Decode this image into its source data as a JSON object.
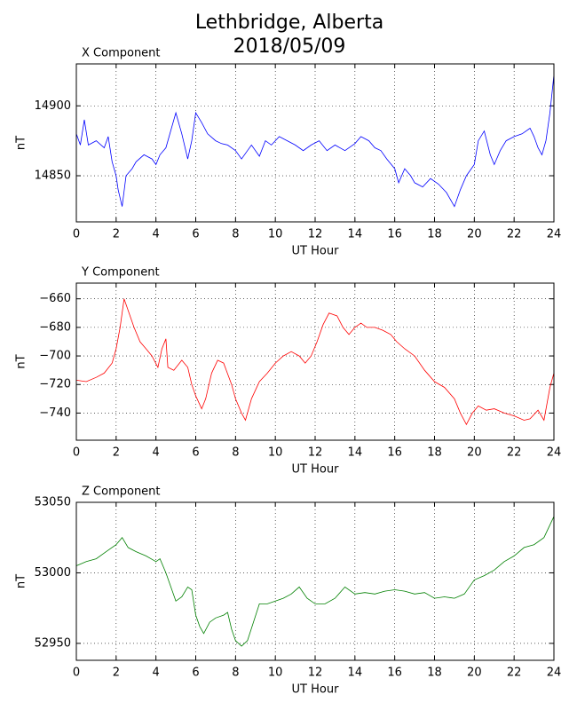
{
  "title": [
    "Lethbridge, Alberta",
    "2018/05/09"
  ],
  "chart_data": [
    {
      "type": "line",
      "title": "X Component",
      "xlabel": "UT Hour",
      "ylabel": "nT",
      "color": "#0000ff",
      "grid": true,
      "xlim": [
        0,
        24
      ],
      "xticks": [
        0,
        2,
        4,
        6,
        8,
        10,
        12,
        14,
        16,
        18,
        20,
        22,
        24
      ],
      "ylim": [
        14817,
        14930
      ],
      "yticks": [
        14850,
        14900
      ],
      "x": [
        0,
        0.2,
        0.4,
        0.6,
        1.0,
        1.4,
        1.6,
        1.8,
        2.0,
        2.1,
        2.3,
        2.5,
        2.8,
        3.0,
        3.4,
        3.8,
        4.0,
        4.2,
        4.5,
        4.8,
        5.0,
        5.3,
        5.6,
        5.8,
        6.0,
        6.3,
        6.6,
        7.0,
        7.3,
        7.6,
        8.0,
        8.3,
        8.6,
        8.8,
        9.2,
        9.5,
        9.8,
        10.2,
        10.6,
        11.0,
        11.4,
        11.8,
        12.2,
        12.6,
        13.0,
        13.5,
        14.0,
        14.3,
        14.7,
        15.0,
        15.3,
        15.6,
        16.0,
        16.2,
        16.5,
        16.8,
        17.0,
        17.4,
        17.8,
        18.2,
        18.6,
        19.0,
        19.3,
        19.6,
        20.0,
        20.2,
        20.5,
        20.8,
        21.0,
        21.3,
        21.6,
        22.0,
        22.4,
        22.8,
        23.0,
        23.2,
        23.4,
        23.6,
        23.8,
        24.0
      ],
      "values": [
        14880,
        14872,
        14890,
        14872,
        14875,
        14870,
        14878,
        14860,
        14850,
        14840,
        14828,
        14850,
        14855,
        14860,
        14865,
        14862,
        14858,
        14865,
        14870,
        14885,
        14895,
        14880,
        14862,
        14875,
        14895,
        14888,
        14880,
        14875,
        14873,
        14872,
        14868,
        14862,
        14868,
        14872,
        14864,
        14875,
        14872,
        14878,
        14875,
        14872,
        14868,
        14872,
        14875,
        14868,
        14872,
        14868,
        14873,
        14878,
        14875,
        14870,
        14868,
        14862,
        14855,
        14845,
        14855,
        14850,
        14845,
        14842,
        14848,
        14844,
        14838,
        14828,
        14840,
        14850,
        14858,
        14875,
        14882,
        14865,
        14858,
        14868,
        14875,
        14878,
        14880,
        14884,
        14878,
        14870,
        14865,
        14875,
        14895,
        14922
      ]
    },
    {
      "type": "line",
      "title": "Y Component",
      "xlabel": "UT Hour",
      "ylabel": "nT",
      "color": "#ff0000",
      "grid": true,
      "xlim": [
        0,
        24
      ],
      "xticks": [
        0,
        2,
        4,
        6,
        8,
        10,
        12,
        14,
        16,
        18,
        20,
        22,
        24
      ],
      "ylim": [
        -759,
        -649
      ],
      "yticks": [
        {
          "value": -740,
          "label": "−740"
        },
        {
          "value": -720,
          "label": "−720"
        },
        {
          "value": -700,
          "label": "−700"
        },
        {
          "value": -680,
          "label": "−680"
        },
        {
          "value": -660,
          "label": "−660"
        }
      ],
      "x": [
        0,
        0.5,
        1.0,
        1.4,
        1.8,
        2.0,
        2.2,
        2.4,
        2.6,
        2.9,
        3.2,
        3.5,
        3.8,
        4.1,
        4.3,
        4.5,
        4.6,
        4.9,
        5.3,
        5.6,
        5.8,
        6.0,
        6.3,
        6.5,
        6.8,
        7.1,
        7.4,
        7.8,
        8.0,
        8.3,
        8.5,
        8.8,
        9.2,
        9.6,
        10.0,
        10.4,
        10.8,
        11.2,
        11.5,
        11.8,
        12.1,
        12.4,
        12.7,
        13.1,
        13.4,
        13.7,
        14.0,
        14.3,
        14.6,
        15.0,
        15.4,
        15.8,
        16.1,
        16.5,
        17.0,
        17.5,
        18.0,
        18.5,
        19.0,
        19.3,
        19.6,
        19.9,
        20.2,
        20.6,
        21.0,
        21.5,
        22.0,
        22.5,
        22.8,
        23.2,
        23.5,
        23.8,
        24.0
      ],
      "values": [
        -717,
        -718,
        -715,
        -712,
        -705,
        -695,
        -680,
        -660,
        -668,
        -680,
        -690,
        -695,
        -700,
        -708,
        -695,
        -688,
        -708,
        -710,
        -703,
        -708,
        -720,
        -728,
        -737,
        -730,
        -712,
        -703,
        -705,
        -720,
        -730,
        -740,
        -745,
        -730,
        -718,
        -712,
        -705,
        -700,
        -697,
        -700,
        -705,
        -700,
        -690,
        -678,
        -670,
        -672,
        -680,
        -685,
        -680,
        -677,
        -680,
        -680,
        -682,
        -685,
        -690,
        -695,
        -700,
        -710,
        -718,
        -722,
        -730,
        -740,
        -748,
        -740,
        -735,
        -738,
        -737,
        -740,
        -742,
        -745,
        -744,
        -738,
        -745,
        -722,
        -712
      ]
    },
    {
      "type": "line",
      "title": "Z Component",
      "xlabel": "UT Hour",
      "ylabel": "nT",
      "color": "#008000",
      "grid": true,
      "xlim": [
        0,
        24
      ],
      "xticks": [
        0,
        2,
        4,
        6,
        8,
        10,
        12,
        14,
        16,
        18,
        20,
        22,
        24
      ],
      "ylim": [
        52938,
        53050
      ],
      "yticks": [
        52950,
        53000,
        53050
      ],
      "x": [
        0,
        0.5,
        1.0,
        1.5,
        2.0,
        2.3,
        2.6,
        3.0,
        3.5,
        4.0,
        4.2,
        4.5,
        4.8,
        5.0,
        5.3,
        5.6,
        5.8,
        6.0,
        6.2,
        6.4,
        6.7,
        7.0,
        7.4,
        7.6,
        7.8,
        8.0,
        8.3,
        8.6,
        8.9,
        9.2,
        9.6,
        10.0,
        10.4,
        10.8,
        11.2,
        11.6,
        12.0,
        12.5,
        13.0,
        13.5,
        14.0,
        14.5,
        15.0,
        15.5,
        16.0,
        16.5,
        17.0,
        17.5,
        18.0,
        18.5,
        19.0,
        19.5,
        20.0,
        20.5,
        21.0,
        21.5,
        22.0,
        22.5,
        23.0,
        23.5,
        24.0
      ],
      "values": [
        53005,
        53008,
        53010,
        53015,
        53020,
        53025,
        53018,
        53015,
        53012,
        53008,
        53010,
        53000,
        52988,
        52980,
        52983,
        52990,
        52988,
        52970,
        52962,
        52957,
        52965,
        52968,
        52970,
        52972,
        52960,
        52952,
        52948,
        52952,
        52965,
        52978,
        52978,
        52980,
        52982,
        52985,
        52990,
        52982,
        52978,
        52978,
        52982,
        52990,
        52985,
        52986,
        52985,
        52987,
        52988,
        52987,
        52985,
        52986,
        52982,
        52983,
        52982,
        52985,
        52995,
        52998,
        53002,
        53008,
        53012,
        53018,
        53020,
        53025,
        53040
      ]
    }
  ]
}
